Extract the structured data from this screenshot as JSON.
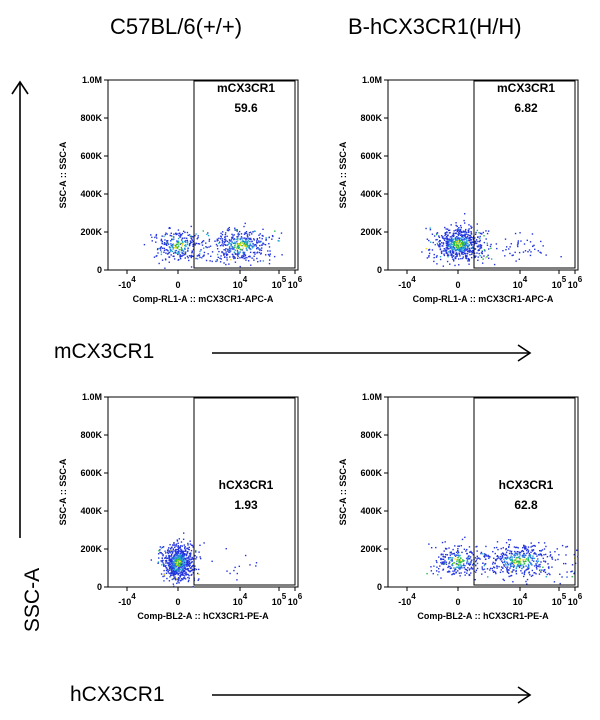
{
  "column_titles": [
    "C57BL/6(+/+)",
    "B-hCX3CR1(H/H)"
  ],
  "row_labels": [
    "mCX3CR1",
    "hCX3CR1"
  ],
  "y_axis_label": "SSC-A",
  "chart_data": [
    {
      "type": "scatter",
      "panel": "top-left",
      "xlabel": "Comp-RL1-A :: mCX3CR1-APC-A",
      "ylabel": "SSC-A :: SSC-A",
      "x_ticks": [
        "-10^4",
        "0",
        "10^4",
        "10^5",
        "10^6"
      ],
      "y_ticks": [
        "0",
        "200K",
        "400K",
        "600K",
        "800K",
        "1.0M"
      ],
      "ylim": [
        0,
        1000000
      ],
      "gate": {
        "name": "mCX3CR1",
        "value": "59.6"
      },
      "clusters": [
        {
          "center_x": 0,
          "center_y": 130000,
          "fraction": 0.4
        },
        {
          "center_x": 10000,
          "center_y": 130000,
          "fraction": 0.6
        }
      ]
    },
    {
      "type": "scatter",
      "panel": "top-right",
      "xlabel": "Comp-RL1-A :: mCX3CR1-APC-A",
      "ylabel": "SSC-A :: SSC-A",
      "x_ticks": [
        "-10^4",
        "0",
        "10^4",
        "10^5",
        "10^6"
      ],
      "y_ticks": [
        "0",
        "200K",
        "400K",
        "600K",
        "800K",
        "1.0M"
      ],
      "ylim": [
        0,
        1000000
      ],
      "gate": {
        "name": "mCX3CR1",
        "value": "6.82"
      },
      "clusters": [
        {
          "center_x": 0,
          "center_y": 140000,
          "fraction": 0.93
        },
        {
          "center_x": 10000,
          "center_y": 130000,
          "fraction": 0.07
        }
      ]
    },
    {
      "type": "scatter",
      "panel": "bottom-left",
      "xlabel": "Comp-BL2-A :: hCX3CR1-PE-A",
      "ylabel": "SSC-A :: SSC-A",
      "x_ticks": [
        "-10^4",
        "0",
        "10^4",
        "10^5",
        "10^6"
      ],
      "y_ticks": [
        "0",
        "200K",
        "400K",
        "600K",
        "800K",
        "1.0M"
      ],
      "ylim": [
        0,
        1000000
      ],
      "gate": {
        "name": "hCX3CR1",
        "value": "1.93"
      },
      "clusters": [
        {
          "center_x": 0,
          "center_y": 130000,
          "fraction": 0.98
        },
        {
          "center_x": 10000,
          "center_y": 130000,
          "fraction": 0.02
        }
      ]
    },
    {
      "type": "scatter",
      "panel": "bottom-right",
      "xlabel": "Comp-BL2-A :: hCX3CR1-PE-A",
      "ylabel": "SSC-A :: SSC-A",
      "x_ticks": [
        "-10^4",
        "0",
        "10^4",
        "10^5",
        "10^6"
      ],
      "y_ticks": [
        "0",
        "200K",
        "400K",
        "600K",
        "800K",
        "1.0M"
      ],
      "ylim": [
        0,
        1000000
      ],
      "gate": {
        "name": "hCX3CR1",
        "value": "62.8"
      },
      "clusters": [
        {
          "center_x": 0,
          "center_y": 140000,
          "fraction": 0.37
        },
        {
          "center_x": 10000,
          "center_y": 140000,
          "fraction": 0.63
        }
      ]
    }
  ]
}
